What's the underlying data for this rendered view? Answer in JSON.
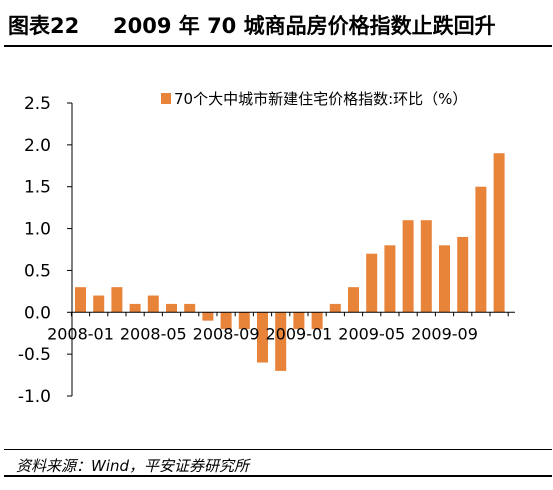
{
  "header": {
    "figure_label": "图表22",
    "title": "2009 年 70 城商品房价格指数止跌回升"
  },
  "source": "资料来源：Wind，平安证券研究所",
  "colors": {
    "bar": "#E8833A",
    "axis": "#000000"
  },
  "chart_data": {
    "type": "bar",
    "title": "",
    "xlabel": "",
    "ylabel": "",
    "ylim": [
      -1.0,
      2.5
    ],
    "y_ticks": [
      "2.5",
      "2.0",
      "1.5",
      "1.0",
      "0.5",
      "0.0",
      "-0.5",
      "-1.0"
    ],
    "y_tick_values": [
      2.5,
      2.0,
      1.5,
      1.0,
      0.5,
      0.0,
      -0.5,
      -1.0
    ],
    "legend_position": "top-right",
    "x_tick_labels": [
      {
        "label": "2008-01",
        "index": 0
      },
      {
        "label": "2008-05",
        "index": 4
      },
      {
        "label": "2008-09",
        "index": 8
      },
      {
        "label": "2009-01",
        "index": 12
      },
      {
        "label": "2009-05",
        "index": 16
      },
      {
        "label": "2009-09",
        "index": 20
      }
    ],
    "categories": [
      "2008-01",
      "2008-02",
      "2008-03",
      "2008-04",
      "2008-05",
      "2008-06",
      "2008-07",
      "2008-08",
      "2008-09",
      "2008-10",
      "2008-11",
      "2008-12",
      "2009-01",
      "2009-02",
      "2009-03",
      "2009-04",
      "2009-05",
      "2009-06",
      "2009-07",
      "2009-08",
      "2009-09",
      "2009-10",
      "2009-11",
      "2009-12"
    ],
    "series": [
      {
        "name": "70个大中城市新建住宅价格指数:环比（%）",
        "values": [
          0.3,
          0.2,
          0.3,
          0.1,
          0.2,
          0.1,
          0.1,
          -0.1,
          -0.2,
          -0.2,
          -0.6,
          -0.7,
          -0.2,
          -0.2,
          0.1,
          0.3,
          0.7,
          0.8,
          1.1,
          1.1,
          0.8,
          0.9,
          1.5,
          1.9
        ]
      }
    ]
  }
}
